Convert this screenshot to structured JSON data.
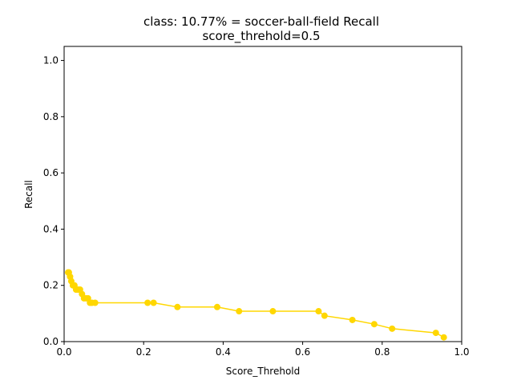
{
  "chart_data": {
    "type": "line",
    "title": "class: 10.77% = soccer-ball-field Recall",
    "subtitle": "score_threhold=0.5",
    "xlabel": "Score_Threhold",
    "ylabel": "Recall",
    "xlim": [
      0.0,
      1.0
    ],
    "ylim": [
      0.0,
      1.05
    ],
    "xticks": [
      "0.0",
      "0.2",
      "0.4",
      "0.6",
      "0.8",
      "1.0"
    ],
    "yticks": [
      "0.0",
      "0.2",
      "0.4",
      "0.6",
      "0.8",
      "1.0"
    ],
    "grid": false,
    "color": "#FFD700",
    "series": [
      {
        "x": [
          0.01,
          0.012,
          0.015,
          0.018,
          0.022,
          0.026,
          0.03,
          0.035,
          0.04,
          0.045,
          0.05,
          0.055,
          0.06,
          0.065,
          0.07,
          0.078,
          0.21,
          0.225,
          0.285,
          0.385,
          0.44,
          0.525,
          0.64,
          0.655,
          0.725,
          0.78,
          0.825,
          0.935,
          0.955
        ],
        "y": [
          0.246,
          0.246,
          0.231,
          0.215,
          0.2,
          0.2,
          0.185,
          0.185,
          0.185,
          0.169,
          0.154,
          0.154,
          0.154,
          0.138,
          0.138,
          0.138,
          0.138,
          0.138,
          0.123,
          0.123,
          0.108,
          0.108,
          0.108,
          0.092,
          0.077,
          0.062,
          0.046,
          0.031,
          0.015
        ]
      }
    ]
  }
}
